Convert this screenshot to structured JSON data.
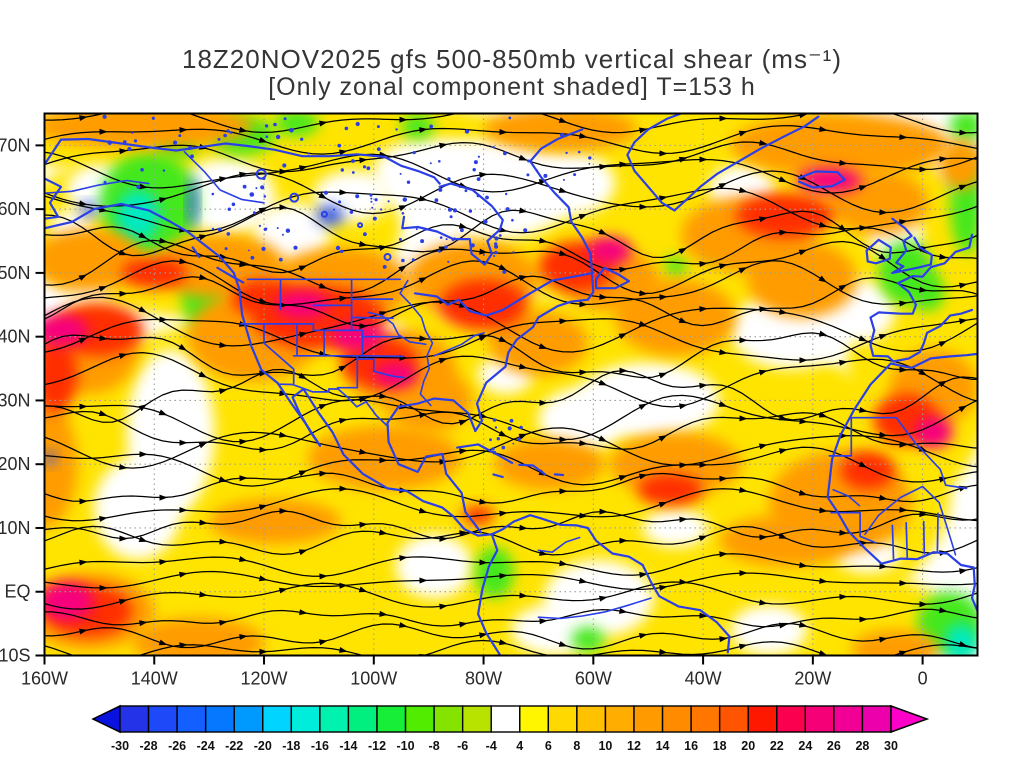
{
  "title": {
    "line1": "18Z20NOV2025 gfs 500-850mb vertical shear (ms⁻¹)",
    "line2": "[Only zonal component shaded] T=153 h"
  },
  "chart_data": {
    "type": "heatmap",
    "subtype": "shaded-shear-with-streamlines-over-map",
    "title": "18Z20NOV2025 gfs 500-850mb vertical shear (ms⁻¹)",
    "subtitle": "[Only zonal component shaded] T=153 h",
    "model": "gfs",
    "init_time": "18Z20NOV2025",
    "forecast_hour_label": "T=153 h",
    "layer": "500-850mb",
    "variable": "vertical shear",
    "units": "ms⁻¹",
    "shading_note": "Only zonal component shaded",
    "x_axis": {
      "range": [
        -160,
        10
      ],
      "tick_values": [
        -160,
        -140,
        -120,
        -100,
        -80,
        -60,
        -40,
        -20,
        0
      ],
      "tick_labels": [
        "160W",
        "140W",
        "120W",
        "100W",
        "80W",
        "60W",
        "40W",
        "20W",
        "0"
      ]
    },
    "y_axis": {
      "range": [
        -10,
        75
      ],
      "tick_values": [
        70,
        60,
        50,
        40,
        30,
        20,
        10,
        0,
        -10
      ],
      "tick_labels": [
        "70N",
        "60N",
        "50N",
        "40N",
        "30N",
        "20N",
        "10N",
        "EQ",
        "10S"
      ]
    },
    "grid": {
      "lat_lines": [
        70,
        60,
        50,
        40,
        30,
        20,
        10,
        0
      ],
      "lon_lines": [
        -140,
        -120,
        -100,
        -80,
        -60,
        -40,
        -20,
        0
      ],
      "style": "dotted"
    },
    "colorbar": {
      "tick_labels": [
        "-30",
        "-28",
        "-26",
        "-24",
        "-22",
        "-20",
        "-18",
        "-16",
        "-14",
        "-12",
        "-10",
        "-8",
        "-6",
        "-4",
        "4",
        "6",
        "8",
        "10",
        "12",
        "14",
        "16",
        "18",
        "20",
        "22",
        "24",
        "26",
        "28",
        "30"
      ],
      "tick_values": [
        -30,
        -28,
        -26,
        -24,
        -22,
        -20,
        -18,
        -16,
        -14,
        -12,
        -10,
        -8,
        -6,
        -4,
        4,
        6,
        8,
        10,
        12,
        14,
        16,
        18,
        20,
        22,
        24,
        26,
        28,
        30
      ],
      "cell_colors": [
        "#2433E8",
        "#1D49F8",
        "#135FFF",
        "#0677FF",
        "#009AFF",
        "#00D4FF",
        "#00EDDC",
        "#00F2AE",
        "#00EF7F",
        "#16EE38",
        "#52EC00",
        "#84E400",
        "#B8E200",
        "#FFFFFF",
        "#FFF600",
        "#FFD800",
        "#FFC100",
        "#FFAD00",
        "#FF9B00",
        "#FF8B00",
        "#FF7600",
        "#FF5400",
        "#FF1800",
        "#FB004E",
        "#F60078",
        "#F10096",
        "#EC00AC"
      ],
      "left_arrow_color": "#0A12E0",
      "right_arrow_color": "#FF00C8",
      "outline_color": "#000000"
    },
    "palette": {
      "yellow": "#FFE400",
      "orange": "#FF9C00",
      "red": "#FF2E00",
      "magenta": "#F6007E",
      "green": "#44E81C",
      "cyan": "#00E9C0",
      "white": "#FFFFFF",
      "blue": "#2A50F0"
    },
    "shading_blobs": [
      [
        -85,
        15,
        90,
        32,
        "yellow"
      ],
      [
        -85,
        -4,
        90,
        14,
        "yellow"
      ],
      [
        -130,
        57,
        35,
        14,
        "yellow"
      ],
      [
        -120,
        71,
        48,
        7,
        "yellow"
      ],
      [
        -40,
        60,
        45,
        18,
        "yellow"
      ],
      [
        0,
        40,
        14,
        25,
        "yellow"
      ],
      [
        -79,
        63,
        16,
        8,
        "white"
      ],
      [
        -90,
        66,
        10,
        5,
        "white"
      ],
      [
        -104,
        62,
        7,
        4,
        "white"
      ],
      [
        -64,
        64,
        8,
        5,
        "white"
      ],
      [
        -150,
        63,
        6,
        4,
        "white"
      ],
      [
        -127,
        62,
        9,
        6,
        "white"
      ],
      [
        -115,
        56,
        7,
        5,
        "white"
      ],
      [
        -155,
        57,
        4,
        3,
        "white"
      ],
      [
        -137,
        25,
        8,
        13,
        "white"
      ],
      [
        -143,
        13,
        8,
        8,
        "white"
      ],
      [
        -50,
        30,
        13,
        6,
        "white"
      ],
      [
        -62,
        27,
        8,
        5,
        "white"
      ],
      [
        -24,
        41,
        11,
        6,
        "white"
      ],
      [
        -12,
        44,
        7,
        5,
        "white"
      ],
      [
        -33,
        63,
        6,
        4,
        "white"
      ],
      [
        -5,
        56,
        5,
        4,
        "white"
      ],
      [
        -59,
        -1,
        10,
        6,
        "white"
      ],
      [
        -67,
        -6,
        8,
        4,
        "white"
      ],
      [
        -89,
        4,
        7,
        5,
        "white"
      ],
      [
        -88,
        51,
        6,
        3,
        "white"
      ],
      [
        -84,
        46,
        5,
        3,
        "white"
      ],
      [
        -28,
        -6,
        7,
        4,
        "white"
      ],
      [
        -45,
        10,
        6,
        3,
        "white"
      ],
      [
        -152,
        48,
        4,
        3,
        "white"
      ],
      [
        -76,
        34,
        5,
        3,
        "white"
      ],
      [
        -10,
        6,
        6,
        3,
        "white"
      ],
      [
        -98,
        40,
        4,
        2.5,
        "white"
      ],
      [
        -141,
        61,
        9,
        8,
        "green"
      ],
      [
        -143,
        59,
        4,
        4,
        "cyan"
      ],
      [
        -131,
        47,
        4,
        6,
        "green"
      ],
      [
        -124,
        71.5,
        6,
        3,
        "green"
      ],
      [
        -136,
        70,
        4,
        2,
        "green"
      ],
      [
        -3,
        50,
        5,
        5,
        "green"
      ],
      [
        1,
        47,
        3,
        3,
        "green"
      ],
      [
        5,
        -5,
        6,
        5,
        "green"
      ],
      [
        7,
        -8,
        3,
        3,
        "cyan"
      ],
      [
        -78,
        3,
        3.5,
        4,
        "green"
      ],
      [
        -61,
        -7.5,
        3,
        2,
        "green"
      ],
      [
        8,
        61,
        3,
        8,
        "green"
      ],
      [
        8,
        73,
        3,
        2.5,
        "green"
      ],
      [
        -37,
        54,
        2.5,
        2,
        "green"
      ],
      [
        -45,
        51,
        2,
        1.5,
        "green"
      ],
      [
        -92,
        73,
        3,
        2,
        "green"
      ],
      [
        -114,
        73.5,
        4,
        2,
        "green"
      ],
      [
        -142,
        73,
        20,
        3.5,
        "orange"
      ],
      [
        -66,
        72.5,
        14,
        3.5,
        "orange"
      ],
      [
        -15,
        70,
        20,
        5,
        "orange"
      ],
      [
        7,
        67,
        4,
        4,
        "orange"
      ],
      [
        -152,
        52,
        10,
        5,
        "orange"
      ],
      [
        -128,
        51,
        12,
        5,
        "orange"
      ],
      [
        -106,
        48,
        13,
        6,
        "orange"
      ],
      [
        -82,
        49,
        12,
        6,
        "orange"
      ],
      [
        -57,
        49,
        9,
        5,
        "orange"
      ],
      [
        -32,
        56,
        12,
        6,
        "orange"
      ],
      [
        -8,
        61,
        9,
        5,
        "orange"
      ],
      [
        -152,
        38,
        9,
        7,
        "orange"
      ],
      [
        -122,
        40,
        12,
        7,
        "orange"
      ],
      [
        -95,
        35,
        10,
        6,
        "orange"
      ],
      [
        -70,
        39,
        9,
        5,
        "orange"
      ],
      [
        -45,
        43,
        11,
        6,
        "orange"
      ],
      [
        -22,
        49,
        10,
        6,
        "orange"
      ],
      [
        -98,
        21,
        14,
        5,
        "orange"
      ],
      [
        -68,
        20,
        10,
        4,
        "orange"
      ],
      [
        -45,
        20,
        12,
        5,
        "orange"
      ],
      [
        -15,
        14,
        13,
        8,
        "orange"
      ],
      [
        2,
        32,
        8,
        6,
        "orange"
      ],
      [
        -90,
        30,
        8,
        5,
        "orange"
      ],
      [
        -152,
        -3,
        12,
        6,
        "orange"
      ],
      [
        -132,
        -8,
        12,
        4,
        "orange"
      ],
      [
        -25,
        8,
        12,
        4,
        "orange"
      ],
      [
        -160,
        20,
        6,
        10,
        "orange"
      ],
      [
        -118,
        11,
        12,
        3.5,
        "orange"
      ],
      [
        -5,
        -9,
        8,
        3,
        "orange"
      ],
      [
        -150,
        41,
        8,
        4,
        "red"
      ],
      [
        -158,
        34,
        4,
        6,
        "red"
      ],
      [
        -140,
        50,
        6,
        2.5,
        "red"
      ],
      [
        -110,
        43,
        12,
        5,
        "red"
      ],
      [
        -99,
        36,
        7,
        4,
        "red"
      ],
      [
        -80,
        45,
        8,
        4,
        "red"
      ],
      [
        -63,
        51,
        7,
        4,
        "red"
      ],
      [
        -25,
        59,
        9,
        3.5,
        "red"
      ],
      [
        -46,
        16,
        6,
        2.5,
        "red"
      ],
      [
        -3,
        27,
        6,
        4,
        "red"
      ],
      [
        -10,
        19,
        5,
        3,
        "red"
      ],
      [
        -152,
        -3,
        8,
        4,
        "red"
      ],
      [
        -81,
        12,
        3,
        1.5,
        "red"
      ],
      [
        -120,
        46,
        6,
        3,
        "red"
      ],
      [
        -157,
        41,
        5,
        2.5,
        "magenta"
      ],
      [
        -113,
        45,
        5,
        2.2,
        "magenta"
      ],
      [
        -103,
        40,
        5,
        2.2,
        "magenta"
      ],
      [
        -96,
        34,
        4,
        2,
        "magenta"
      ],
      [
        -57,
        53.5,
        4,
        2.2,
        "magenta"
      ],
      [
        -17,
        64.5,
        6,
        2,
        "magenta"
      ],
      [
        2,
        25,
        3.5,
        2.5,
        "magenta"
      ],
      [
        -156,
        -1.5,
        5,
        3,
        "magenta"
      ],
      [
        -133,
        61,
        0.8,
        4,
        "blue"
      ],
      [
        -108,
        59,
        2.5,
        1.5,
        "blue"
      ],
      [
        -152,
        60,
        1.5,
        1,
        "blue"
      ],
      [
        -159,
        21,
        1,
        1,
        "blue"
      ]
    ],
    "style": {
      "coast_color": "#2B3FE6",
      "stream_color": "#000000",
      "grid_color": "#9E9E9E",
      "frame_color": "#000000",
      "text_color": "#2A2A2A"
    }
  }
}
